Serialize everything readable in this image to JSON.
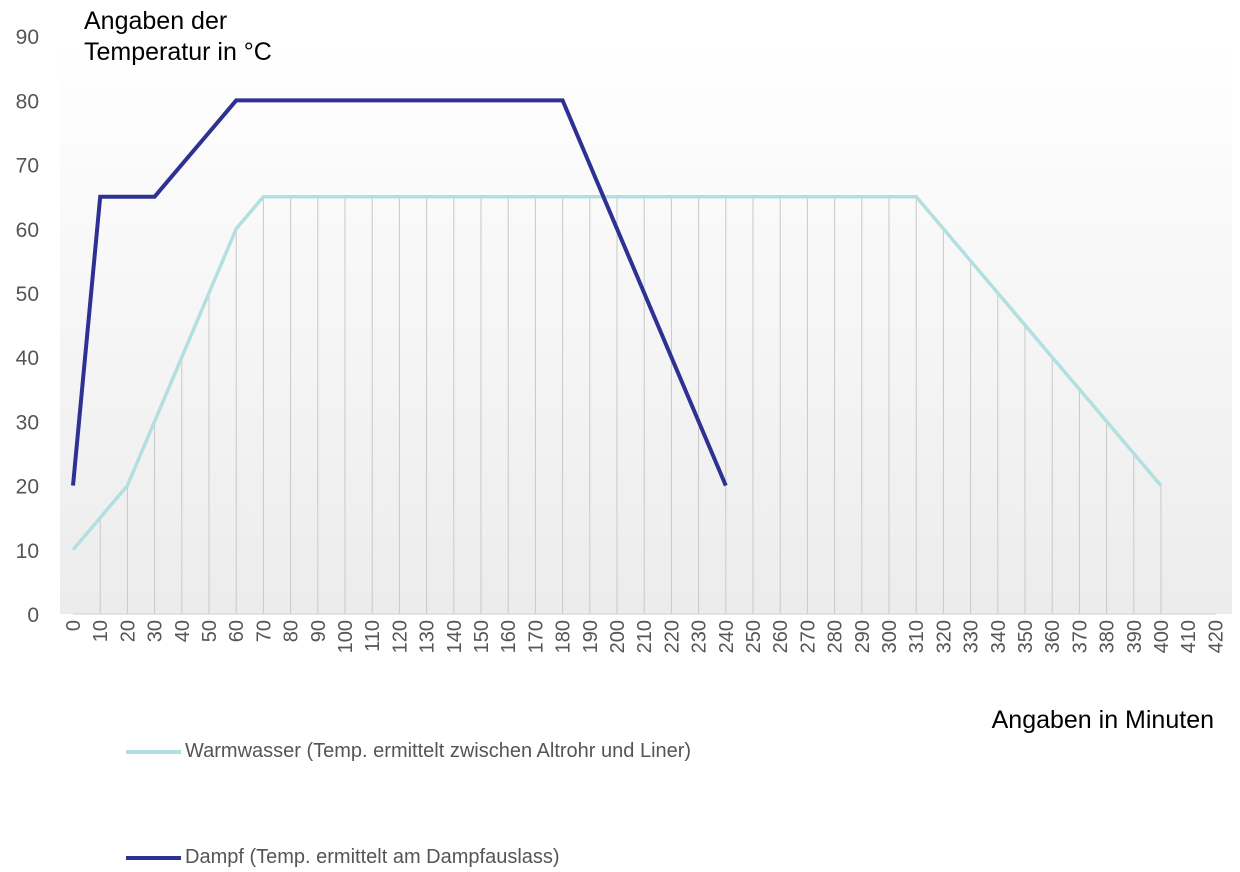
{
  "chart_data": {
    "type": "line",
    "title": "",
    "ylabel": "Angaben der\nTemperatur in °C",
    "xlabel": "Angaben in Minuten",
    "ylim": [
      0,
      90
    ],
    "yticks": [
      0,
      10,
      20,
      30,
      40,
      50,
      60,
      70,
      80,
      90
    ],
    "xlim": [
      0,
      420
    ],
    "xticks": [
      0,
      10,
      20,
      30,
      40,
      50,
      60,
      70,
      80,
      90,
      100,
      110,
      120,
      130,
      140,
      150,
      160,
      170,
      180,
      190,
      200,
      210,
      220,
      230,
      240,
      250,
      260,
      270,
      280,
      290,
      300,
      310,
      320,
      330,
      340,
      350,
      360,
      370,
      380,
      390,
      400,
      410,
      420
    ],
    "grid": "vertical",
    "legend_position": "bottom-left",
    "series": [
      {
        "name": "Warmwasser (Temp. ermittelt zwischen Altrohr und Liner)",
        "color": "#b2dfe0",
        "x": [
          0,
          10,
          20,
          30,
          40,
          50,
          60,
          70,
          80,
          90,
          100,
          110,
          120,
          130,
          140,
          150,
          160,
          170,
          180,
          190,
          200,
          210,
          220,
          230,
          240,
          250,
          260,
          270,
          280,
          290,
          300,
          310,
          320,
          330,
          340,
          350,
          360,
          370,
          380,
          390,
          400
        ],
        "y": [
          10,
          15,
          20,
          30,
          40,
          50,
          60,
          65,
          65,
          65,
          65,
          65,
          65,
          65,
          65,
          65,
          65,
          65,
          65,
          65,
          65,
          65,
          65,
          65,
          65,
          65,
          65,
          65,
          65,
          65,
          65,
          65,
          60,
          55,
          50,
          45,
          40,
          35,
          30,
          25,
          20
        ]
      },
      {
        "name": "Dampf (Temp. ermittelt am Dampfauslass)",
        "color": "#2e3192",
        "x": [
          0,
          10,
          20,
          30,
          40,
          50,
          60,
          70,
          80,
          90,
          100,
          110,
          120,
          130,
          140,
          150,
          160,
          170,
          180,
          190,
          200,
          210,
          220,
          230,
          240
        ],
        "y": [
          20,
          65,
          65,
          65,
          70,
          75,
          80,
          80,
          80,
          80,
          80,
          80,
          80,
          80,
          80,
          80,
          80,
          80,
          80,
          70,
          60,
          50,
          40,
          30,
          20
        ]
      }
    ]
  }
}
